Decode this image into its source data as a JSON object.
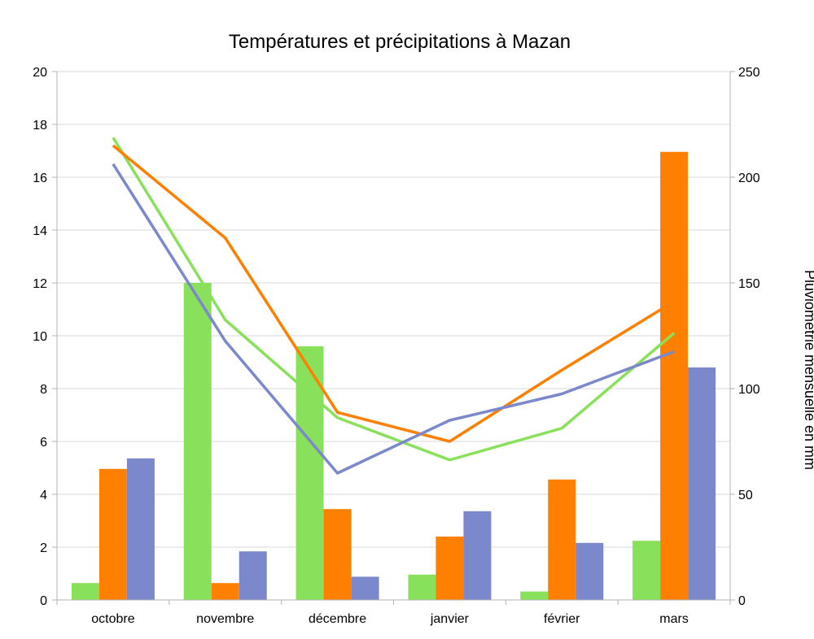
{
  "chart_data": {
    "type": "bar",
    "title": "Températures et précipitations à Mazan",
    "categories": [
      "octobre",
      "novembre",
      "décembre",
      "janvier",
      "février",
      "mars"
    ],
    "ylabel_left": "",
    "ylabel_right": "Pluviométrie mensuelle en mm",
    "ylim_left": [
      0,
      20
    ],
    "yticks_left": [
      "0",
      "2",
      "4",
      "6",
      "8",
      "10",
      "12",
      "14",
      "16",
      "18",
      "20"
    ],
    "ylim_right": [
      0,
      250
    ],
    "yticks_right": [
      "0",
      "50",
      "100",
      "150",
      "200",
      "250"
    ],
    "grid": true,
    "bar_series": [
      {
        "color": "#89e05a",
        "values": [
          8,
          150,
          120,
          12,
          4,
          28
        ]
      },
      {
        "color": "#ff8000",
        "values": [
          62,
          8,
          43,
          30,
          57,
          212
        ]
      },
      {
        "color": "#7b88cc",
        "values": [
          67,
          23,
          11,
          42,
          27,
          110
        ]
      }
    ],
    "line_series": [
      {
        "color": "#89e05a",
        "values": [
          17.5,
          10.6,
          6.9,
          5.3,
          6.5,
          10.1
        ]
      },
      {
        "color": "#ff8000",
        "values": [
          17.2,
          13.7,
          7.1,
          6.0,
          8.7,
          11.3
        ]
      },
      {
        "color": "#7b88cc",
        "values": [
          16.5,
          9.8,
          4.8,
          6.8,
          7.8,
          9.4
        ]
      }
    ]
  }
}
